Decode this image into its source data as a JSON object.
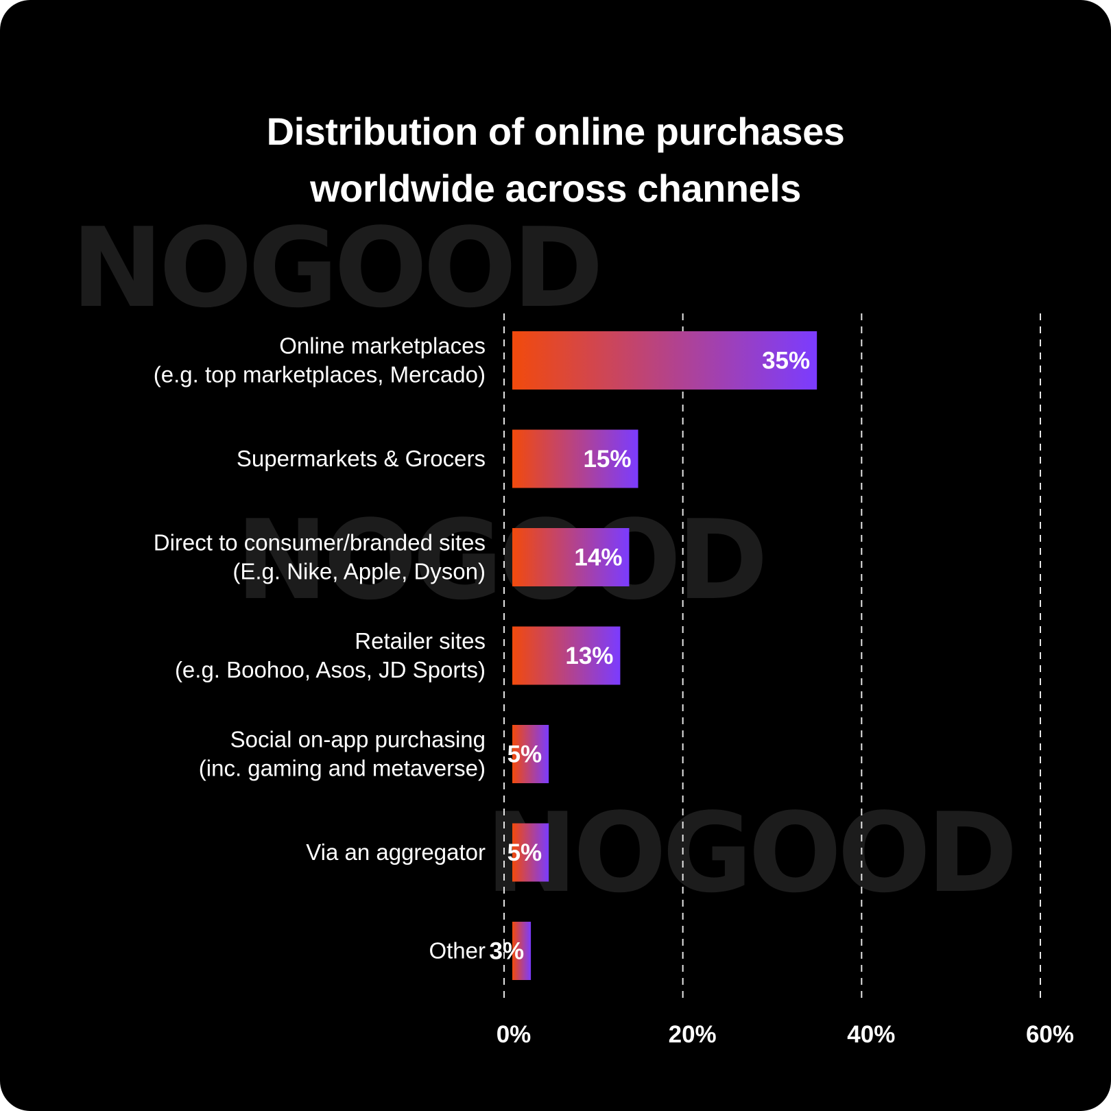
{
  "watermark": "NOGOOD",
  "colors": {
    "background": "#000000",
    "bar_start": "#f24a0c",
    "bar_end": "#7b3cff",
    "watermark": "#1c1c1c",
    "text": "#ffffff"
  },
  "chart_data": {
    "type": "bar",
    "orientation": "horizontal",
    "title": "Distribution of online purchases worldwide across channels",
    "title_lines": [
      "Distribution of online purchases",
      "worldwide across channels"
    ],
    "categories": [
      [
        "Online marketplaces",
        "(e.g. top marketplaces, Mercado)"
      ],
      [
        "Supermarkets & Grocers"
      ],
      [
        "Direct to consumer/branded sites",
        "(E.g. Nike, Apple, Dyson)"
      ],
      [
        "Retailer sites",
        "(e.g. Boohoo, Asos, JD Sports)"
      ],
      [
        "Social on-app purchasing",
        "(inc. gaming and metaverse)"
      ],
      [
        "Via an aggregator"
      ],
      [
        "Other"
      ]
    ],
    "values": [
      35,
      15,
      14,
      13,
      5,
      5,
      3
    ],
    "value_labels": [
      "35%",
      "15%",
      "14%",
      "13%",
      "5%",
      "5%",
      "3%"
    ],
    "xticks": [
      0,
      20,
      40,
      60
    ],
    "xtick_labels": [
      "0%",
      "20%",
      "40%",
      "60%"
    ],
    "xlim": [
      0,
      60
    ],
    "grid": "vertical dashed",
    "legend": "none"
  }
}
